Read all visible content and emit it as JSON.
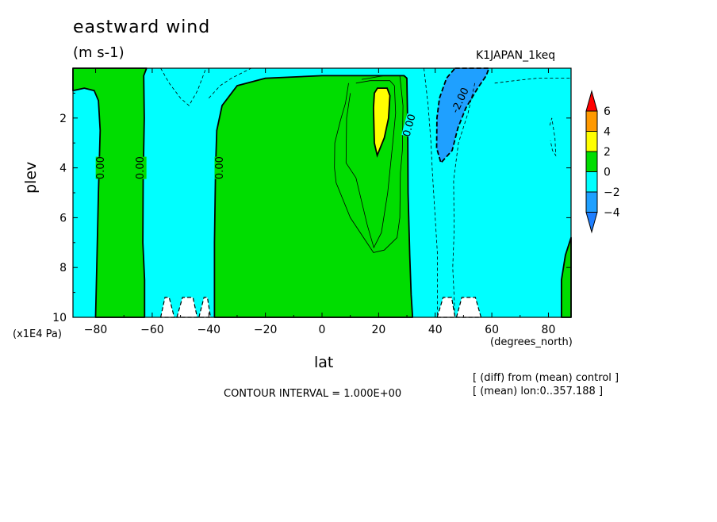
{
  "chart_data": {
    "type": "heatmap",
    "title": "eastward wind",
    "units": "(m s-1)",
    "run_label": "K1JAPAN_1keq",
    "xlabel": "lat",
    "x_units": "(degrees_north)",
    "ylabel": "plev",
    "y_units": "(x1E4 Pa)",
    "xlim": [
      -88,
      88
    ],
    "ylim": [
      10,
      0
    ],
    "x_ticks": [
      -80,
      -60,
      -40,
      -20,
      0,
      20,
      40,
      60,
      80
    ],
    "y_ticks": [
      2,
      4,
      6,
      8,
      10
    ],
    "contour_interval": "CONTOUR INTERVAL = 1.000E+00",
    "notes": [
      "[ (diff) from (mean) control ]",
      "[ (mean) lon:0..357.188 ]"
    ],
    "contour_labels": [
      {
        "text": "0.00",
        "lat": -78,
        "plev": 4.0
      },
      {
        "text": "0.00",
        "lat": -64,
        "plev": 4.0
      },
      {
        "text": "0.00",
        "lat": -36,
        "plev": 4.0
      },
      {
        "text": "0.00",
        "lat": 31,
        "plev": 2.3
      },
      {
        "text": "-2.00",
        "lat": 49,
        "plev": 1.3
      }
    ],
    "colorbar": {
      "boundaries": [
        -4,
        -2,
        0,
        2,
        4,
        6
      ],
      "tick_labels": [
        "-4",
        "-2",
        "0",
        "2",
        "4",
        "6"
      ],
      "colors": [
        "#1f7fff",
        "#1fa0ff",
        "#00ffff",
        "#00dd00",
        "#ffff00",
        "#ff9900",
        "#ff0000"
      ]
    },
    "regions": [
      {
        "value_range": "0 to 2",
        "color": "#00dd00",
        "area": "lat -88 to -80, plev 0.8-10"
      },
      {
        "value_range": "0 to 2",
        "color": "#00dd00",
        "area": "lat -80 to -62, plev 0-10"
      },
      {
        "value_range": "0 to 2",
        "color": "#00dd00",
        "area": "lat -38 to 35, plev 0.3-10"
      },
      {
        "value_range": "2 to 4",
        "color": "#ffff00",
        "area": "lat 17 to 25, plev 0.9-3.5"
      },
      {
        "value_range": "-4 to -2",
        "color": "#1fa0ff",
        "area": "lat 37 to 60, plev 0-3.8"
      },
      {
        "value_range": "0 to 2",
        "color": "#00dd00",
        "area": "lat 84 to 88, plev 7-10"
      }
    ]
  }
}
